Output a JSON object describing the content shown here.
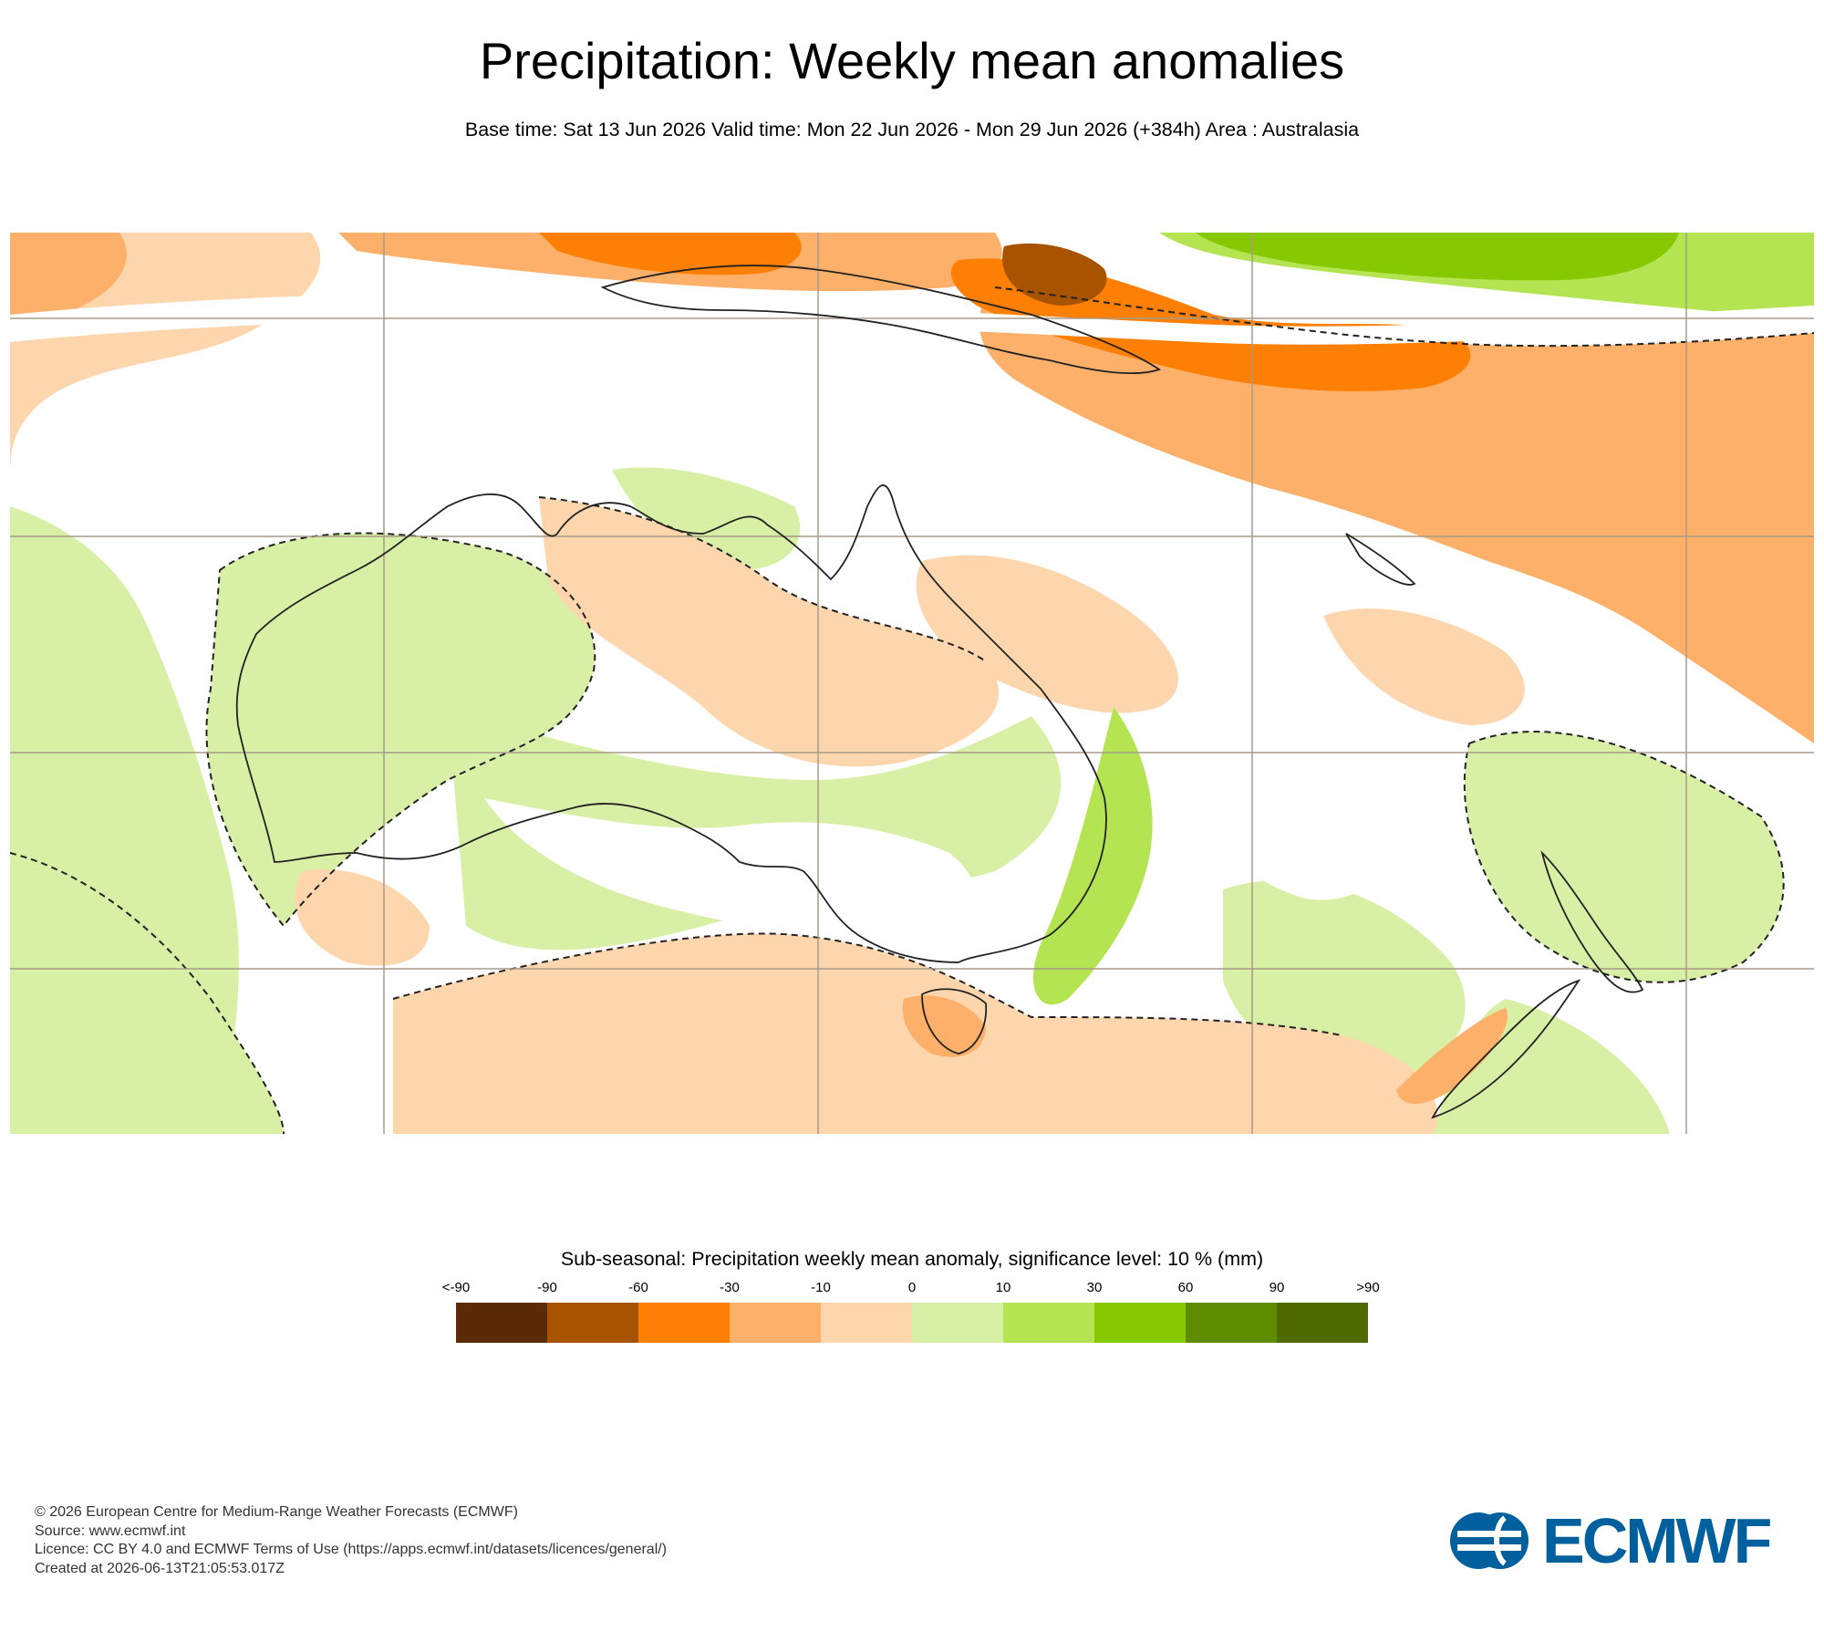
{
  "header": {
    "title": "Precipitation: Weekly mean anomalies",
    "subtitle": "Base time: Sat 13 Jun 2026 Valid time: Mon 22 Jun 2026 - Mon 29 Jun 2026 (+384h) Area : Australasia"
  },
  "map": {
    "area": "Australasia",
    "fill_colors": {
      "negative_10_0": "#fdd6ad",
      "negative_30_10": "#fdb06a",
      "negative_60_30": "#fd7f04",
      "negative_90_60": "#a85300",
      "below_minus_90": "#5b2a06",
      "positive_0_10": "#d8f0a5",
      "positive_10_30": "#b4e451",
      "positive_30_60": "#86c801",
      "positive_60_90": "#608d00",
      "above_90": "#4f6b00"
    },
    "coastline_color": "#222222",
    "gridline_color": "#a79a88",
    "significance_contour": "dashed"
  },
  "legend": {
    "title": "Sub-seasonal: Precipitation weekly mean anomaly, significance level: 10 % (mm)",
    "labels": [
      "<-90",
      "-90",
      "-60",
      "-30",
      "-10",
      "0",
      "10",
      "30",
      "60",
      "90",
      ">90"
    ],
    "colors": [
      "#5b2a06",
      "#a85300",
      "#fd7f04",
      "#fdb06a",
      "#fdd6ad",
      "#d8f0a5",
      "#b4e451",
      "#86c801",
      "#608d00",
      "#4f6b00"
    ]
  },
  "footer": {
    "lines": [
      "© 2026 European Centre for Medium-Range Weather Forecasts (ECMWF)",
      "Source: www.ecmwf.int",
      "Licence: CC BY 4.0 and ECMWF Terms of Use (https://apps.ecmwf.int/datasets/licences/general/)",
      "Created at 2026-06-13T21:05:53.017Z"
    ]
  },
  "logo": {
    "text": "ECMWF",
    "color": "#00609e"
  }
}
